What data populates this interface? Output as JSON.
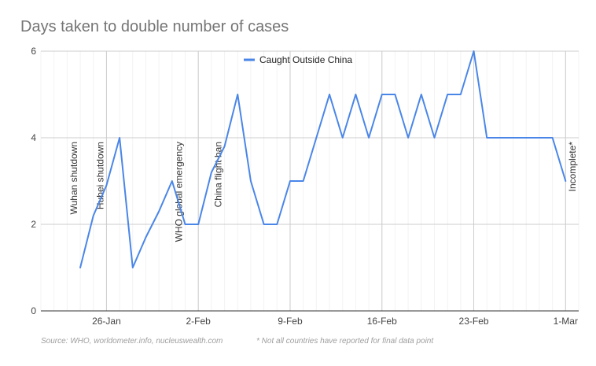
{
  "chart_data": {
    "type": "line",
    "title": "Days taken to double number of cases",
    "xlabel": "",
    "ylabel": "",
    "xlim": [
      "2020-01-21",
      "2020-03-02"
    ],
    "ylim": [
      0,
      6
    ],
    "y_ticks": [
      0,
      2,
      4,
      6
    ],
    "x_ticks": [
      {
        "date": "2020-01-26",
        "label": "26-Jan"
      },
      {
        "date": "2020-02-02",
        "label": "2-Feb"
      },
      {
        "date": "2020-02-09",
        "label": "9-Feb"
      },
      {
        "date": "2020-02-16",
        "label": "16-Feb"
      },
      {
        "date": "2020-02-23",
        "label": "23-Feb"
      },
      {
        "date": "2020-03-01",
        "label": "1-Mar"
      }
    ],
    "grid": true,
    "legend_position": "top-center",
    "series": [
      {
        "name": "Caught Outside China",
        "color": "#4a86e8",
        "points": [
          {
            "x": "2020-01-24",
            "y": 1
          },
          {
            "x": "2020-01-25",
            "y": 2.2
          },
          {
            "x": "2020-01-26",
            "y": 2.9
          },
          {
            "x": "2020-01-27",
            "y": 4
          },
          {
            "x": "2020-01-28",
            "y": 1
          },
          {
            "x": "2020-01-29",
            "y": 1.7
          },
          {
            "x": "2020-01-30",
            "y": 2.3
          },
          {
            "x": "2020-01-31",
            "y": 3
          },
          {
            "x": "2020-02-01",
            "y": 2
          },
          {
            "x": "2020-02-02",
            "y": 2
          },
          {
            "x": "2020-02-03",
            "y": 3.2
          },
          {
            "x": "2020-02-04",
            "y": 3.8
          },
          {
            "x": "2020-02-05",
            "y": 5
          },
          {
            "x": "2020-02-06",
            "y": 3
          },
          {
            "x": "2020-02-07",
            "y": 2
          },
          {
            "x": "2020-02-08",
            "y": 2
          },
          {
            "x": "2020-02-09",
            "y": 3
          },
          {
            "x": "2020-02-10",
            "y": 3
          },
          {
            "x": "2020-02-11",
            "y": 4
          },
          {
            "x": "2020-02-12",
            "y": 5
          },
          {
            "x": "2020-02-13",
            "y": 4
          },
          {
            "x": "2020-02-14",
            "y": 5
          },
          {
            "x": "2020-02-15",
            "y": 4
          },
          {
            "x": "2020-02-16",
            "y": 5
          },
          {
            "x": "2020-02-17",
            "y": 5
          },
          {
            "x": "2020-02-18",
            "y": 4
          },
          {
            "x": "2020-02-19",
            "y": 5
          },
          {
            "x": "2020-02-20",
            "y": 4
          },
          {
            "x": "2020-02-21",
            "y": 5
          },
          {
            "x": "2020-02-22",
            "y": 5
          },
          {
            "x": "2020-02-23",
            "y": 6
          },
          {
            "x": "2020-02-24",
            "y": 4
          },
          {
            "x": "2020-02-25",
            "y": 4
          },
          {
            "x": "2020-02-26",
            "y": 4
          },
          {
            "x": "2020-02-27",
            "y": 4
          },
          {
            "x": "2020-02-28",
            "y": 4
          },
          {
            "x": "2020-02-29",
            "y": 4
          },
          {
            "x": "2020-03-01",
            "y": 3
          }
        ]
      }
    ],
    "annotations": [
      {
        "date": "2020-01-23",
        "label": "Wuhan shutdown"
      },
      {
        "date": "2020-01-25",
        "label": "Hubei shutdown"
      },
      {
        "date": "2020-01-31",
        "label": "WHO global emergency"
      },
      {
        "date": "2020-02-03",
        "label": "China flight ban"
      },
      {
        "date": "2020-03-01",
        "label": "Incomplete*"
      }
    ],
    "footnotes": {
      "source": "Source: WHO, worldometer.info, nucleuswealth.com",
      "note": "* Not all countries have reported for final data point"
    }
  }
}
